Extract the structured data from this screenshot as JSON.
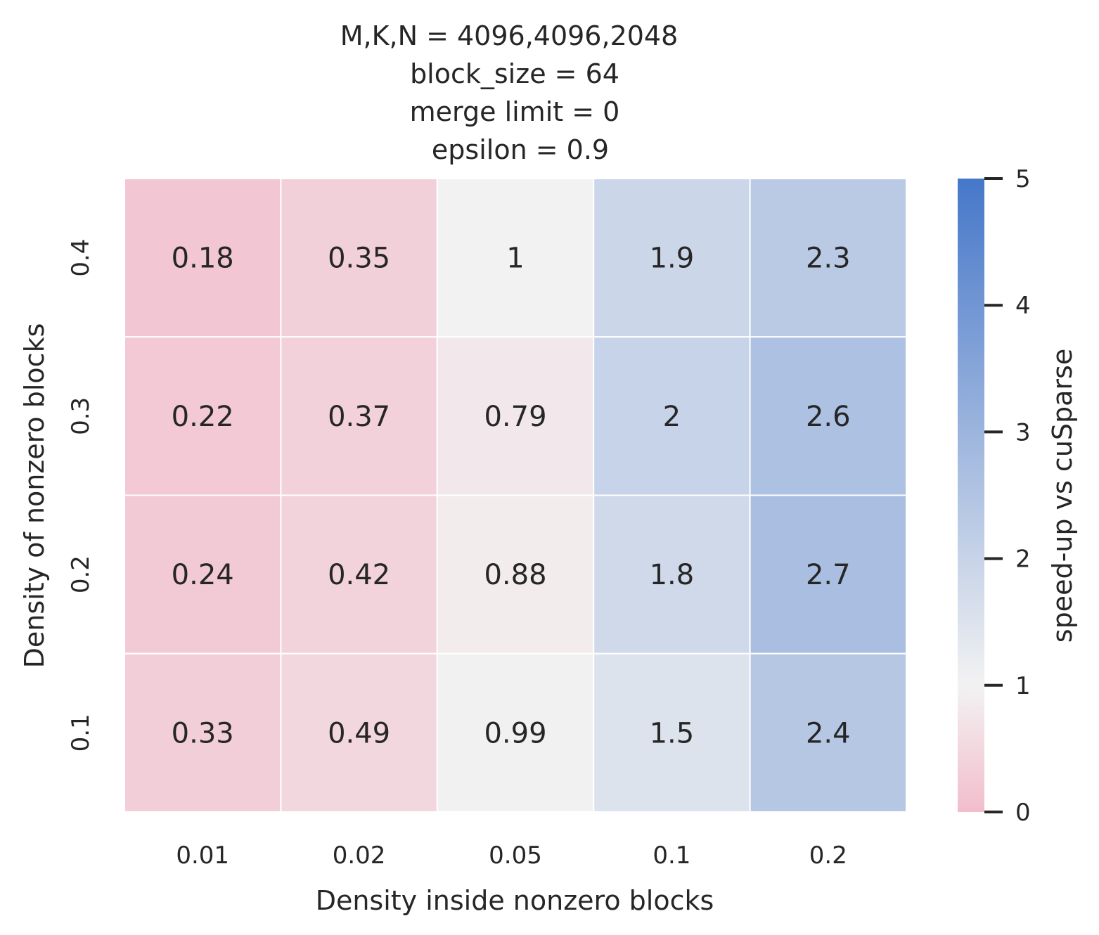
{
  "chart_data": {
    "type": "heatmap",
    "title_lines": [
      "M,K,N = 4096,4096,2048",
      "block_size = 64",
      "merge limit = 0",
      "epsilon = 0.9"
    ],
    "xlabel": "Density inside nonzero blocks",
    "ylabel": "Density of nonzero blocks",
    "x_categories": [
      "0.01",
      "0.02",
      "0.05",
      "0.1",
      "0.2"
    ],
    "y_categories": [
      "0.4",
      "0.3",
      "0.2",
      "0.1"
    ],
    "values": [
      [
        0.18,
        0.35,
        1,
        1.9,
        2.3
      ],
      [
        0.22,
        0.37,
        0.79,
        2,
        2.6
      ],
      [
        0.24,
        0.42,
        0.88,
        1.8,
        2.7
      ],
      [
        0.33,
        0.49,
        0.99,
        1.5,
        2.4
      ]
    ],
    "colorbar": {
      "label": "speed-up vs cuSparse",
      "min": 0,
      "max": 5,
      "center": 1,
      "ticks": [
        0,
        1,
        2,
        3,
        4,
        5
      ],
      "color_low": "#f2bdcc",
      "color_center": "#f2f2f2",
      "color_high": "#4677c9"
    },
    "grid": false
  }
}
